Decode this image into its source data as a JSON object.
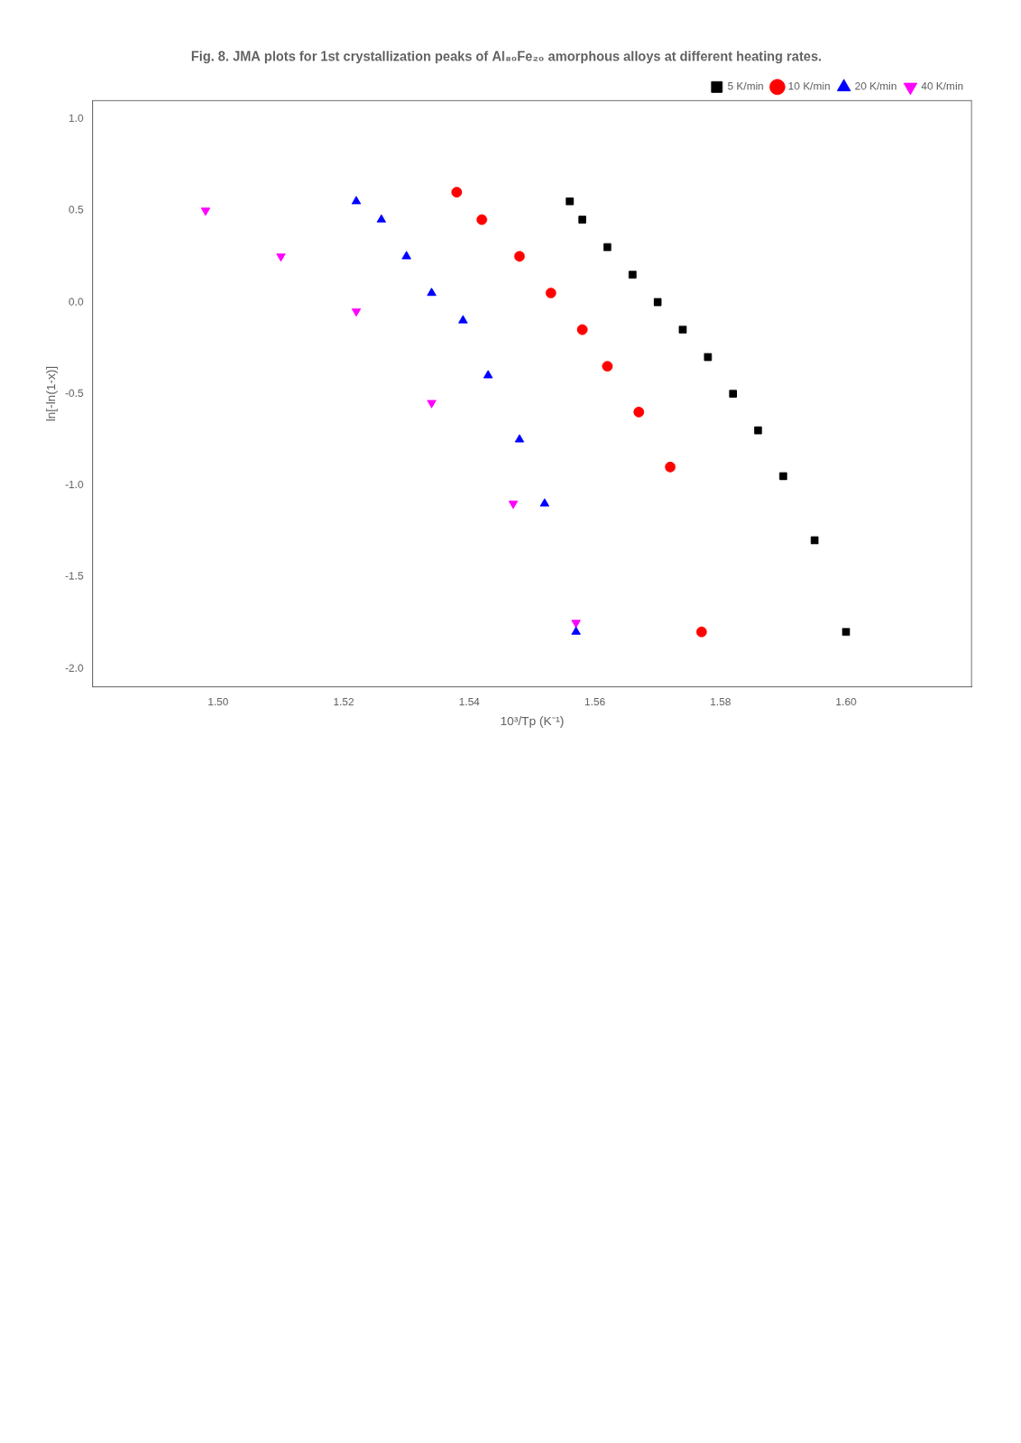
{
  "chart_data": {
    "type": "scatter",
    "title": "Fig. 8. JMA plots for 1st crystallization peaks of Al₈₀Fe₂₀ amorphous alloys at different heating rates.",
    "xlabel": "10³/Tp (K⁻¹)",
    "ylabel": "ln[-ln(1-x)]",
    "xlim": [
      1.48,
      1.62
    ],
    "ylim": [
      -2.1,
      1.1
    ],
    "xticks": [
      {
        "value": 1.5,
        "label": "1.50"
      },
      {
        "value": 1.52,
        "label": "1.52"
      },
      {
        "value": 1.54,
        "label": "1.54"
      },
      {
        "value": 1.56,
        "label": "1.56"
      },
      {
        "value": 1.58,
        "label": "1.58"
      },
      {
        "value": 1.6,
        "label": "1.60"
      }
    ],
    "yticks": [
      {
        "value": -2.0,
        "label": "-2.0"
      },
      -1.5,
      {
        "value": -1.0,
        "label": "-1.0"
      },
      -0.5,
      {
        "value": 0.0,
        "label": "0.0"
      },
      0.5,
      {
        "value": 1.0,
        "label": "1.0"
      }
    ],
    "grid": false,
    "legend": "upper right",
    "series": [
      {
        "name": "5 K/min",
        "color": "black",
        "marker": "square",
        "x": [
          1.556,
          1.558,
          1.562,
          1.566,
          1.57,
          1.574,
          1.578,
          1.582,
          1.586,
          1.59,
          1.595,
          1.6
        ],
        "values": [
          0.55,
          0.45,
          0.3,
          0.15,
          0.0,
          -0.15,
          -0.3,
          -0.5,
          -0.7,
          -0.95,
          -1.3,
          -1.8
        ]
      },
      {
        "name": "10 K/min",
        "color": "red",
        "marker": "circle",
        "x": [
          1.538,
          1.542,
          1.548,
          1.553,
          1.558,
          1.562,
          1.567,
          1.572,
          1.577
        ],
        "values": [
          0.6,
          0.45,
          0.25,
          0.05,
          -0.15,
          -0.35,
          -0.6,
          -0.9,
          -1.8
        ]
      },
      {
        "name": "20 K/min",
        "color": "blue",
        "marker": "triangle-up",
        "x": [
          1.522,
          1.526,
          1.53,
          1.534,
          1.539,
          1.543,
          1.548,
          1.552,
          1.557
        ],
        "values": [
          0.55,
          0.45,
          0.25,
          0.05,
          -0.1,
          -0.4,
          -0.75,
          -1.1,
          -1.8
        ]
      },
      {
        "name": "40 K/min",
        "color": "magenta",
        "marker": "triangle-down",
        "x": [
          1.498,
          1.51,
          1.522,
          1.534,
          1.547,
          1.557
        ],
        "values": [
          0.5,
          0.25,
          -0.05,
          -0.55,
          -1.1,
          -1.75
        ]
      }
    ]
  }
}
